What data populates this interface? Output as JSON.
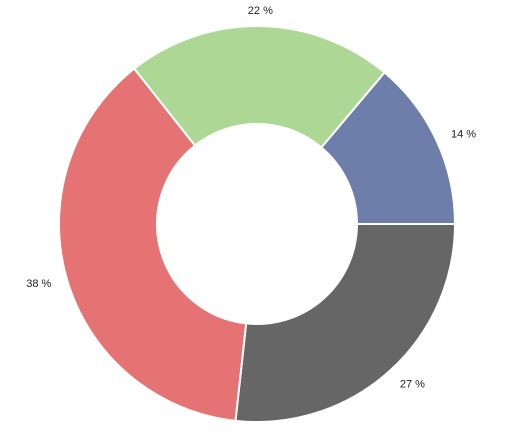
{
  "chart_data": {
    "type": "pie",
    "donut": true,
    "title": "",
    "legend": "none",
    "slices": [
      {
        "label": "14 %",
        "value": 14,
        "color": "#6e7eaa"
      },
      {
        "label": "27 %",
        "value": 27,
        "color": "#666666"
      },
      {
        "label": "38 %",
        "value": 38,
        "color": "#e57373"
      },
      {
        "label": "22 %",
        "value": 22,
        "color": "#add795"
      }
    ]
  }
}
